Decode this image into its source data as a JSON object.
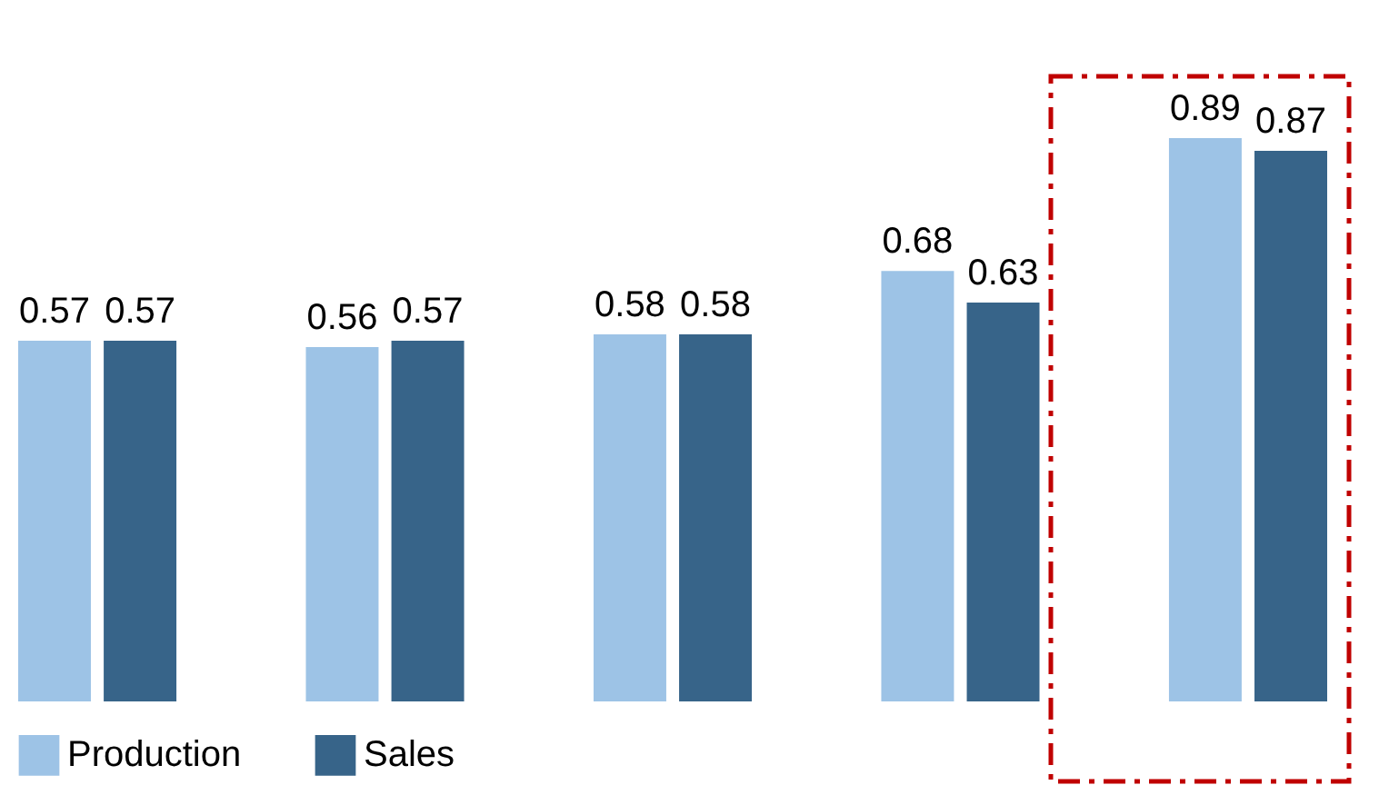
{
  "chart_data": {
    "type": "bar",
    "categories": [
      null,
      null,
      null,
      null,
      null
    ],
    "series": [
      {
        "name": "Production",
        "color": "#9dc3e6",
        "values": [
          0.57,
          0.56,
          0.58,
          0.68,
          0.89
        ]
      },
      {
        "name": "Sales",
        "color": "#376489",
        "values": [
          0.57,
          0.57,
          0.58,
          0.63,
          0.87
        ]
      }
    ],
    "data_labels": true,
    "legend": "bottom",
    "grid": false,
    "tick_labels": false
  }
}
